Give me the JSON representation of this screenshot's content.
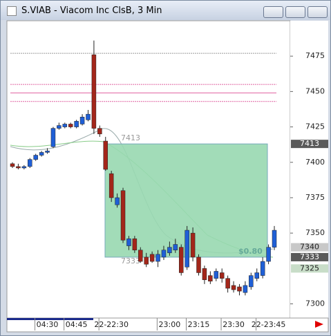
{
  "chart_data": {
    "type": "candlestick",
    "title": "S.VIAB - Viacom Inc ClsB, 3 Min",
    "categories": [
      null,
      null,
      null,
      null,
      null,
      null,
      "04:30",
      null,
      null,
      null,
      null,
      "04:45",
      null,
      null,
      null,
      null,
      null,
      "22-22:30",
      null,
      null,
      null,
      null,
      null,
      null,
      null,
      null,
      null,
      "23:00",
      null,
      null,
      null,
      null,
      "23:15",
      null,
      null,
      null,
      null,
      null,
      "23:30",
      null,
      null,
      null,
      null,
      null,
      "22-23:45",
      null
    ],
    "open": [
      7399,
      7397,
      7396,
      7397,
      7402,
      7405,
      7407,
      7411,
      7424,
      7425,
      7427,
      7425,
      7427,
      7430,
      7476,
      7424,
      7415,
      7392,
      7370,
      7380,
      7341,
      7346,
      7338,
      7333,
      7335,
      7330,
      7333,
      7336,
      7338,
      7340,
      7326,
      7350,
      7333,
      7325,
      7320,
      7318,
      7322,
      7318,
      7313,
      7312,
      7308,
      7312,
      7318,
      7320,
      7330,
      7340
    ],
    "high": [
      7400,
      7399,
      7398,
      7403,
      7406,
      7408,
      7410,
      7425,
      7428,
      7428,
      7428,
      7430,
      7434,
      7437,
      7486,
      7426,
      7418,
      7394,
      7378,
      7382,
      7348,
      7348,
      7340,
      7336,
      7337,
      7338,
      7341,
      7344,
      7346,
      7342,
      7355,
      7354,
      7335,
      7327,
      7323,
      7325,
      7325,
      7320,
      7316,
      7314,
      7316,
      7322,
      7325,
      7333,
      7342,
      7355
    ],
    "low": [
      7396,
      7395,
      7395,
      7396,
      7401,
      7404,
      7406,
      7410,
      7423,
      7424,
      7424,
      7424,
      7426,
      7429,
      7420,
      7418,
      7394,
      7372,
      7368,
      7343,
      7338,
      7336,
      7329,
      7326,
      7329,
      7326,
      7331,
      7334,
      7336,
      7320,
      7324,
      7330,
      7320,
      7314,
      7314,
      7316,
      7315,
      7308,
      7308,
      7306,
      7306,
      7310,
      7316,
      7318,
      7328,
      7338
    ],
    "close": [
      7397,
      7396,
      7397,
      7402,
      7405,
      7407,
      7408,
      7424,
      7426,
      7427,
      7425,
      7429,
      7432,
      7434,
      7424,
      7420,
      7395,
      7375,
      7375,
      7345,
      7346,
      7338,
      7330,
      7328,
      7330,
      7335,
      7338,
      7340,
      7342,
      7322,
      7352,
      7333,
      7322,
      7317,
      7316,
      7323,
      7318,
      7311,
      7310,
      7309,
      7313,
      7320,
      7322,
      7330,
      7340,
      7352
    ],
    "up_color": "#1f5fd6",
    "down_color": "#a3261a",
    "ylim": [
      7290,
      7500
    ],
    "yticks": [
      7300,
      7350,
      7375,
      7400,
      7425,
      7450,
      7475
    ],
    "levels": [
      {
        "value": 7477,
        "color": "#999999"
      },
      {
        "value": 7455,
        "color": "#e060a0"
      },
      {
        "value": 7449,
        "color": "#e060a0"
      },
      {
        "value": 7443,
        "color": "#e060a0"
      }
    ],
    "zone": {
      "top": 7413,
      "bottom": 7333,
      "color": "#98d8b0",
      "amount": "$0.80"
    },
    "price_badges": [
      7413,
      7340,
      7333,
      7325
    ],
    "badge_colors": [
      "#5a5a5a",
      "#c8c8c8",
      "#5a5a5a",
      "#c8ddc8"
    ]
  }
}
